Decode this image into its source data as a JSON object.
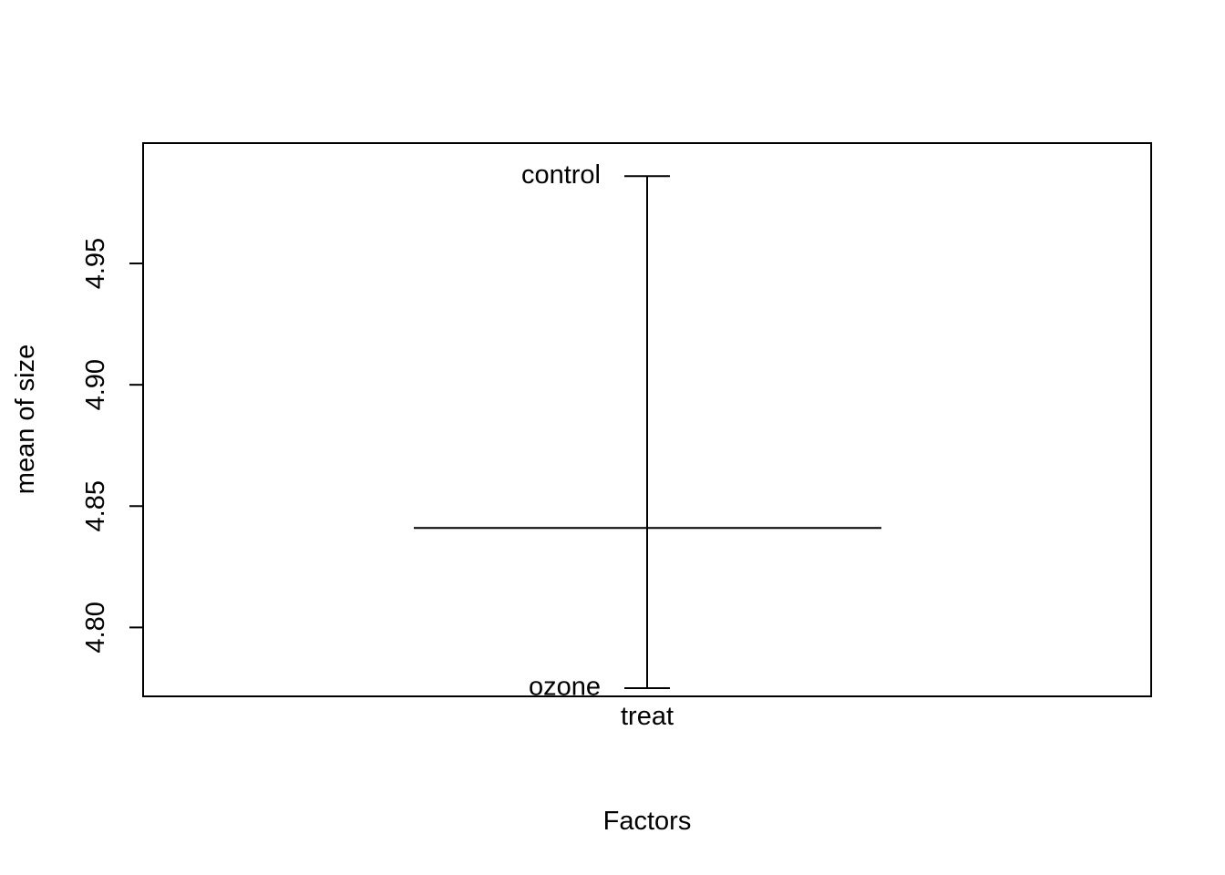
{
  "chart_data": {
    "type": "plot.design",
    "title": "",
    "xlabel": "Factors",
    "ylabel": "mean of size",
    "ylim": [
      4.7716,
      4.9996
    ],
    "y_ticks": [
      4.8,
      4.85,
      4.9,
      4.95
    ],
    "y_tick_labels": [
      "4.80",
      "4.85",
      "4.90",
      "4.95"
    ],
    "grand_mean": 4.841,
    "factors": [
      {
        "name": "treat",
        "levels": [
          {
            "label": "control",
            "mean": 4.986
          },
          {
            "label": "ozone",
            "mean": 4.775
          }
        ]
      }
    ],
    "grid": false,
    "legend": "none"
  }
}
